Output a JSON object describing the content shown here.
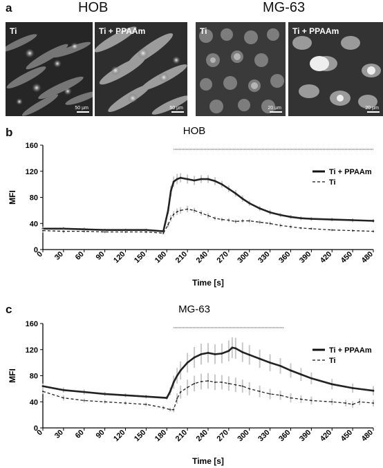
{
  "panel_a": {
    "letter": "a",
    "groups": [
      {
        "title": "HOB",
        "images": [
          {
            "label": "Ti",
            "scale": "50 µm"
          },
          {
            "label": "Ti + PPAAm",
            "scale": "50 µm"
          }
        ]
      },
      {
        "title": "MG-63",
        "images": [
          {
            "label": "Ti",
            "scale": "20 µm"
          },
          {
            "label": "Ti + PPAAm",
            "scale": "20 µm"
          }
        ]
      }
    ]
  },
  "chart_data": [
    {
      "panel": "b",
      "type": "line",
      "title": "HOB",
      "xlabel": "Time [s]",
      "ylabel": "MFI",
      "xlim": [
        0,
        480
      ],
      "ylim": [
        0,
        160
      ],
      "xticks": [
        0,
        30,
        60,
        90,
        120,
        150,
        180,
        210,
        240,
        270,
        300,
        330,
        360,
        390,
        420,
        450,
        480
      ],
      "yticks": [
        0,
        40,
        80,
        120,
        160
      ],
      "legend": "right",
      "significance_bar": [
        190,
        480
      ],
      "series": [
        {
          "name": "Ti + PPAAm",
          "style": "solid",
          "x": [
            0,
            30,
            60,
            90,
            120,
            150,
            175,
            182,
            186,
            190,
            195,
            200,
            210,
            220,
            230,
            240,
            250,
            260,
            270,
            280,
            290,
            300,
            315,
            330,
            345,
            360,
            375,
            390,
            420,
            450,
            480
          ],
          "y": [
            32,
            32,
            31,
            30,
            30,
            30,
            28,
            60,
            90,
            104,
            108,
            110,
            108,
            106,
            108,
            108,
            105,
            100,
            93,
            86,
            78,
            71,
            63,
            57,
            53,
            50,
            48,
            47,
            46,
            45,
            44
          ],
          "error": [
            3,
            3,
            3,
            2,
            2,
            2,
            2,
            6,
            8,
            8,
            8,
            7,
            7,
            7,
            6,
            6,
            6,
            5,
            5,
            5,
            5,
            4,
            4,
            4,
            3,
            3,
            3,
            3,
            3,
            3,
            3
          ]
        },
        {
          "name": "Ti",
          "style": "dashed",
          "x": [
            0,
            30,
            60,
            90,
            120,
            150,
            175,
            182,
            186,
            190,
            195,
            200,
            210,
            220,
            230,
            240,
            250,
            260,
            270,
            280,
            290,
            300,
            315,
            330,
            345,
            360,
            375,
            390,
            420,
            450,
            480
          ],
          "y": [
            29,
            28,
            28,
            27,
            27,
            27,
            25,
            38,
            48,
            54,
            58,
            60,
            62,
            60,
            56,
            52,
            48,
            46,
            45,
            43,
            44,
            44,
            42,
            40,
            37,
            35,
            33,
            32,
            30,
            29,
            28
          ],
          "error": [
            3,
            3,
            2,
            2,
            2,
            2,
            2,
            4,
            5,
            5,
            5,
            5,
            5,
            4,
            4,
            4,
            3,
            3,
            3,
            3,
            3,
            3,
            3,
            3,
            3,
            3,
            2,
            2,
            2,
            2,
            2
          ]
        }
      ]
    },
    {
      "panel": "c",
      "type": "line",
      "title": "MG-63",
      "xlabel": "Time [s]",
      "ylabel": "MFI",
      "xlim": [
        0,
        480
      ],
      "ylim": [
        0,
        160
      ],
      "xticks": [
        0,
        30,
        60,
        90,
        120,
        150,
        180,
        210,
        240,
        270,
        300,
        330,
        360,
        390,
        420,
        450,
        480
      ],
      "yticks": [
        0,
        40,
        80,
        120,
        160
      ],
      "legend": "right",
      "significance_bar": [
        190,
        350
      ],
      "series": [
        {
          "name": "Ti + PPAAm",
          "style": "solid",
          "x": [
            0,
            30,
            60,
            90,
            120,
            150,
            180,
            185,
            190,
            195,
            200,
            210,
            220,
            230,
            240,
            250,
            260,
            270,
            275,
            280,
            290,
            300,
            315,
            330,
            345,
            360,
            375,
            390,
            420,
            450,
            480
          ],
          "y": [
            64,
            58,
            55,
            52,
            50,
            48,
            46,
            56,
            70,
            80,
            88,
            100,
            108,
            113,
            115,
            113,
            114,
            118,
            123,
            122,
            116,
            112,
            106,
            100,
            95,
            88,
            82,
            76,
            67,
            61,
            57
          ],
          "error": [
            4,
            4,
            4,
            3,
            3,
            3,
            3,
            6,
            10,
            12,
            14,
            15,
            16,
            16,
            15,
            15,
            15,
            16,
            16,
            16,
            15,
            15,
            14,
            13,
            12,
            11,
            10,
            9,
            8,
            7,
            7
          ]
        },
        {
          "name": "Ti",
          "style": "dashed",
          "x": [
            0,
            30,
            60,
            90,
            120,
            150,
            175,
            185,
            190,
            195,
            200,
            210,
            220,
            230,
            240,
            250,
            260,
            270,
            280,
            290,
            300,
            315,
            330,
            345,
            360,
            375,
            390,
            420,
            440,
            450,
            460,
            480
          ],
          "y": [
            56,
            46,
            42,
            40,
            38,
            36,
            31,
            28,
            28,
            45,
            55,
            62,
            68,
            71,
            72,
            70,
            70,
            68,
            66,
            64,
            60,
            56,
            52,
            50,
            46,
            44,
            42,
            40,
            38,
            36,
            40,
            38
          ],
          "error": [
            4,
            4,
            3,
            3,
            3,
            3,
            3,
            3,
            4,
            8,
            10,
            12,
            12,
            12,
            12,
            12,
            11,
            11,
            11,
            10,
            10,
            9,
            8,
            7,
            7,
            6,
            6,
            5,
            5,
            5,
            5,
            5
          ]
        }
      ]
    }
  ]
}
